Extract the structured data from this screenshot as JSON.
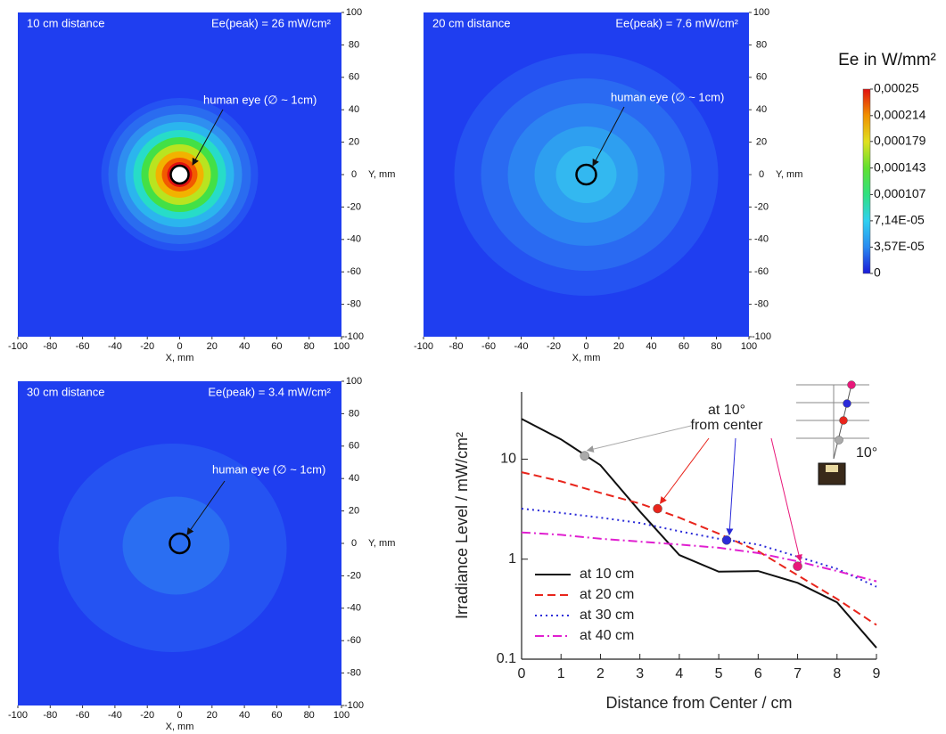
{
  "chart_data": [
    {
      "type": "contour",
      "title": "10 cm distance",
      "annotation": "Ee(peak) = 26 mW/cm²",
      "eye_label": "human eye (∅ ~ 1cm)",
      "xlabel": "X, mm",
      "ylabel": "Y, mm",
      "xlim": [
        -100,
        100
      ],
      "ylim": [
        -100,
        100
      ],
      "xticks": [
        -100,
        -80,
        -60,
        -40,
        -20,
        0,
        20,
        40,
        60,
        80,
        100
      ],
      "yticks": [
        -100,
        -80,
        -60,
        -40,
        -20,
        0,
        20,
        40,
        60,
        80,
        100
      ]
    },
    {
      "type": "contour",
      "title": "20 cm distance",
      "annotation": "Ee(peak) = 7.6 mW/cm²",
      "eye_label": "human eye (∅ ~ 1cm)",
      "xlabel": "X, mm",
      "ylabel": "Y, mm",
      "xlim": [
        -100,
        100
      ],
      "ylim": [
        -100,
        100
      ],
      "xticks": [
        -100,
        -80,
        -60,
        -40,
        -20,
        0,
        20,
        40,
        60,
        80,
        100
      ],
      "yticks": [
        -100,
        -80,
        -60,
        -40,
        -20,
        0,
        20,
        40,
        60,
        80,
        100
      ]
    },
    {
      "type": "contour",
      "title": "30 cm distance",
      "annotation": "Ee(peak) = 3.4 mW/cm²",
      "eye_label": "human eye (∅ ~ 1cm)",
      "xlabel": "X, mm",
      "ylabel": "Y, mm",
      "xlim": [
        -100,
        100
      ],
      "ylim": [
        -100,
        100
      ],
      "xticks": [
        -100,
        -80,
        -60,
        -40,
        -20,
        0,
        20,
        40,
        60,
        80,
        100
      ],
      "yticks": [
        -100,
        -80,
        -60,
        -40,
        -20,
        0,
        20,
        40,
        60,
        80,
        100
      ]
    },
    {
      "type": "line",
      "xlabel": "Distance from Center / cm",
      "ylabel": "Irradiance Level / mW/cm²",
      "log_y": true,
      "legend": "lower left",
      "x": [
        0,
        1,
        2,
        3,
        4,
        5,
        6,
        7,
        8,
        9
      ],
      "xlim": [
        0,
        9
      ],
      "xticks": [
        0,
        1,
        2,
        3,
        4,
        5,
        6,
        7,
        8,
        9
      ],
      "ylim": [
        0.1,
        47
      ],
      "yticks": [
        0.1,
        1,
        10
      ],
      "series": [
        {
          "name": "at 10 cm",
          "color": "#111111",
          "line_style": "solid",
          "values": [
            25.3,
            15.8,
            8.7,
            3.0,
            1.1,
            0.75,
            0.76,
            0.58,
            0.37,
            0.13
          ]
        },
        {
          "name": "at 20 cm",
          "color": "#e8251c",
          "line_style": "dashed",
          "values": [
            7.4,
            6.0,
            4.6,
            3.6,
            2.6,
            1.8,
            1.2,
            0.69,
            0.4,
            0.22
          ]
        },
        {
          "name": "at 30 cm",
          "color": "#2b2bd8",
          "line_style": "dotted",
          "values": [
            3.2,
            2.9,
            2.6,
            2.3,
            1.9,
            1.6,
            1.4,
            1.06,
            0.8,
            0.53
          ]
        },
        {
          "name": "at 40 cm",
          "color": "#e01fd0",
          "line_style": "dashdot",
          "values": [
            1.85,
            1.75,
            1.6,
            1.5,
            1.4,
            1.3,
            1.15,
            0.95,
            0.76,
            0.6
          ]
        }
      ],
      "highlight_points": {
        "x": [
          1.6,
          3.45,
          5.2,
          7.0
        ],
        "values": [
          10.8,
          3.2,
          1.55,
          0.85
        ],
        "colors": [
          "#aaaaaa",
          "#e8251c",
          "#2b2bd8",
          "#e8187a"
        ]
      },
      "annotation": [
        "at 10°",
        "from center"
      ],
      "inset_label": "10°"
    },
    {
      "type": "colorbar",
      "title": "Ee in W/mm²",
      "zlim": [
        0,
        0.00025
      ],
      "colors": [
        "#1a1ad8",
        "#2a8af0",
        "#30d0f0",
        "#30e080",
        "#60e030",
        "#e0e020",
        "#f09000",
        "#e01010"
      ],
      "ticks": [
        {
          "value": 0.00025,
          "label": "0,00025"
        },
        {
          "value": 0.000214,
          "label": "0,000214"
        },
        {
          "value": 0.000179,
          "label": "0,000179"
        },
        {
          "value": 0.000143,
          "label": "0,000143"
        },
        {
          "value": 0.000107,
          "label": "0,000107"
        },
        {
          "value": 7.14e-05,
          "label": "7,14E-05"
        },
        {
          "value": 3.57e-05,
          "label": "3,57E-05"
        },
        0
      ]
    }
  ]
}
